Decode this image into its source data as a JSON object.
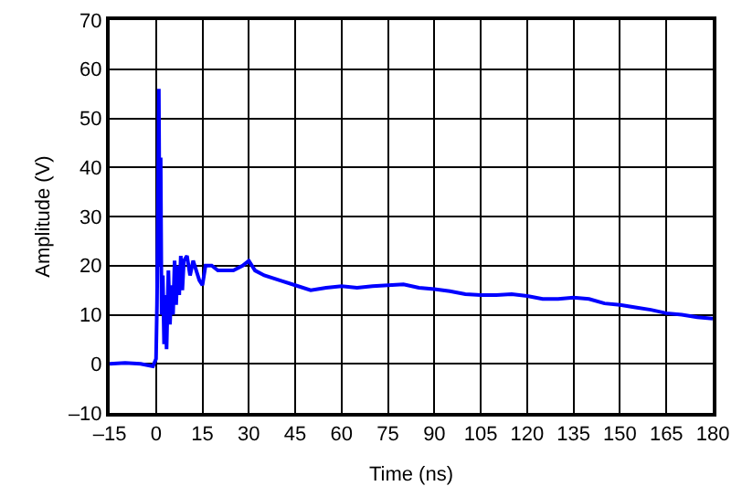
{
  "chart_data": {
    "type": "line",
    "xlabel": "Time (ns)",
    "ylabel": "Amplitude (V)",
    "x": [
      -15,
      -10,
      -5,
      -1,
      0,
      0.3,
      0.6,
      0.9,
      1.2,
      1.5,
      1.8,
      2.2,
      2.6,
      3,
      3.4,
      4,
      4.5,
      5,
      5.5,
      6,
      6.5,
      7,
      7.5,
      8,
      8.5,
      9,
      10,
      11,
      12,
      13,
      14,
      15,
      16,
      18,
      20,
      25,
      28,
      30,
      32,
      35,
      40,
      45,
      50,
      55,
      60,
      65,
      70,
      75,
      80,
      85,
      90,
      95,
      100,
      105,
      110,
      115,
      120,
      125,
      130,
      135,
      140,
      145,
      150,
      155,
      160,
      165,
      170,
      175,
      180
    ],
    "series": [
      {
        "color": "#0000ff",
        "values": [
          0,
          0.2,
          0,
          -0.5,
          1,
          12,
          30,
          56,
          20,
          42,
          10,
          18,
          4,
          14,
          3,
          19,
          8,
          16,
          10,
          21,
          12,
          20,
          14,
          22,
          15,
          21,
          22,
          18,
          21,
          19,
          17,
          16,
          20,
          20,
          19,
          19,
          20,
          21,
          19,
          18,
          17,
          16,
          15,
          15.5,
          15.8,
          15.5,
          15.8,
          16,
          16.2,
          15.5,
          15.2,
          14.8,
          14.2,
          14,
          14,
          14.2,
          13.8,
          13.2,
          13.2,
          13.5,
          13.2,
          12.3,
          12,
          11.5,
          11,
          10.3,
          10,
          9.5,
          9.2
        ]
      }
    ],
    "xlim": [
      -15,
      180
    ],
    "xticks": [
      {
        "value": -15,
        "label": "–15"
      },
      0,
      15,
      30,
      45,
      60,
      75,
      90,
      105,
      120,
      135,
      150,
      165,
      180
    ],
    "ylim": [
      -10,
      70
    ],
    "yticks": [
      {
        "value": -10,
        "label": "–10"
      },
      0,
      10,
      20,
      30,
      40,
      50,
      60,
      70
    ],
    "grid": true,
    "marker": "none",
    "line_style": "solid"
  }
}
